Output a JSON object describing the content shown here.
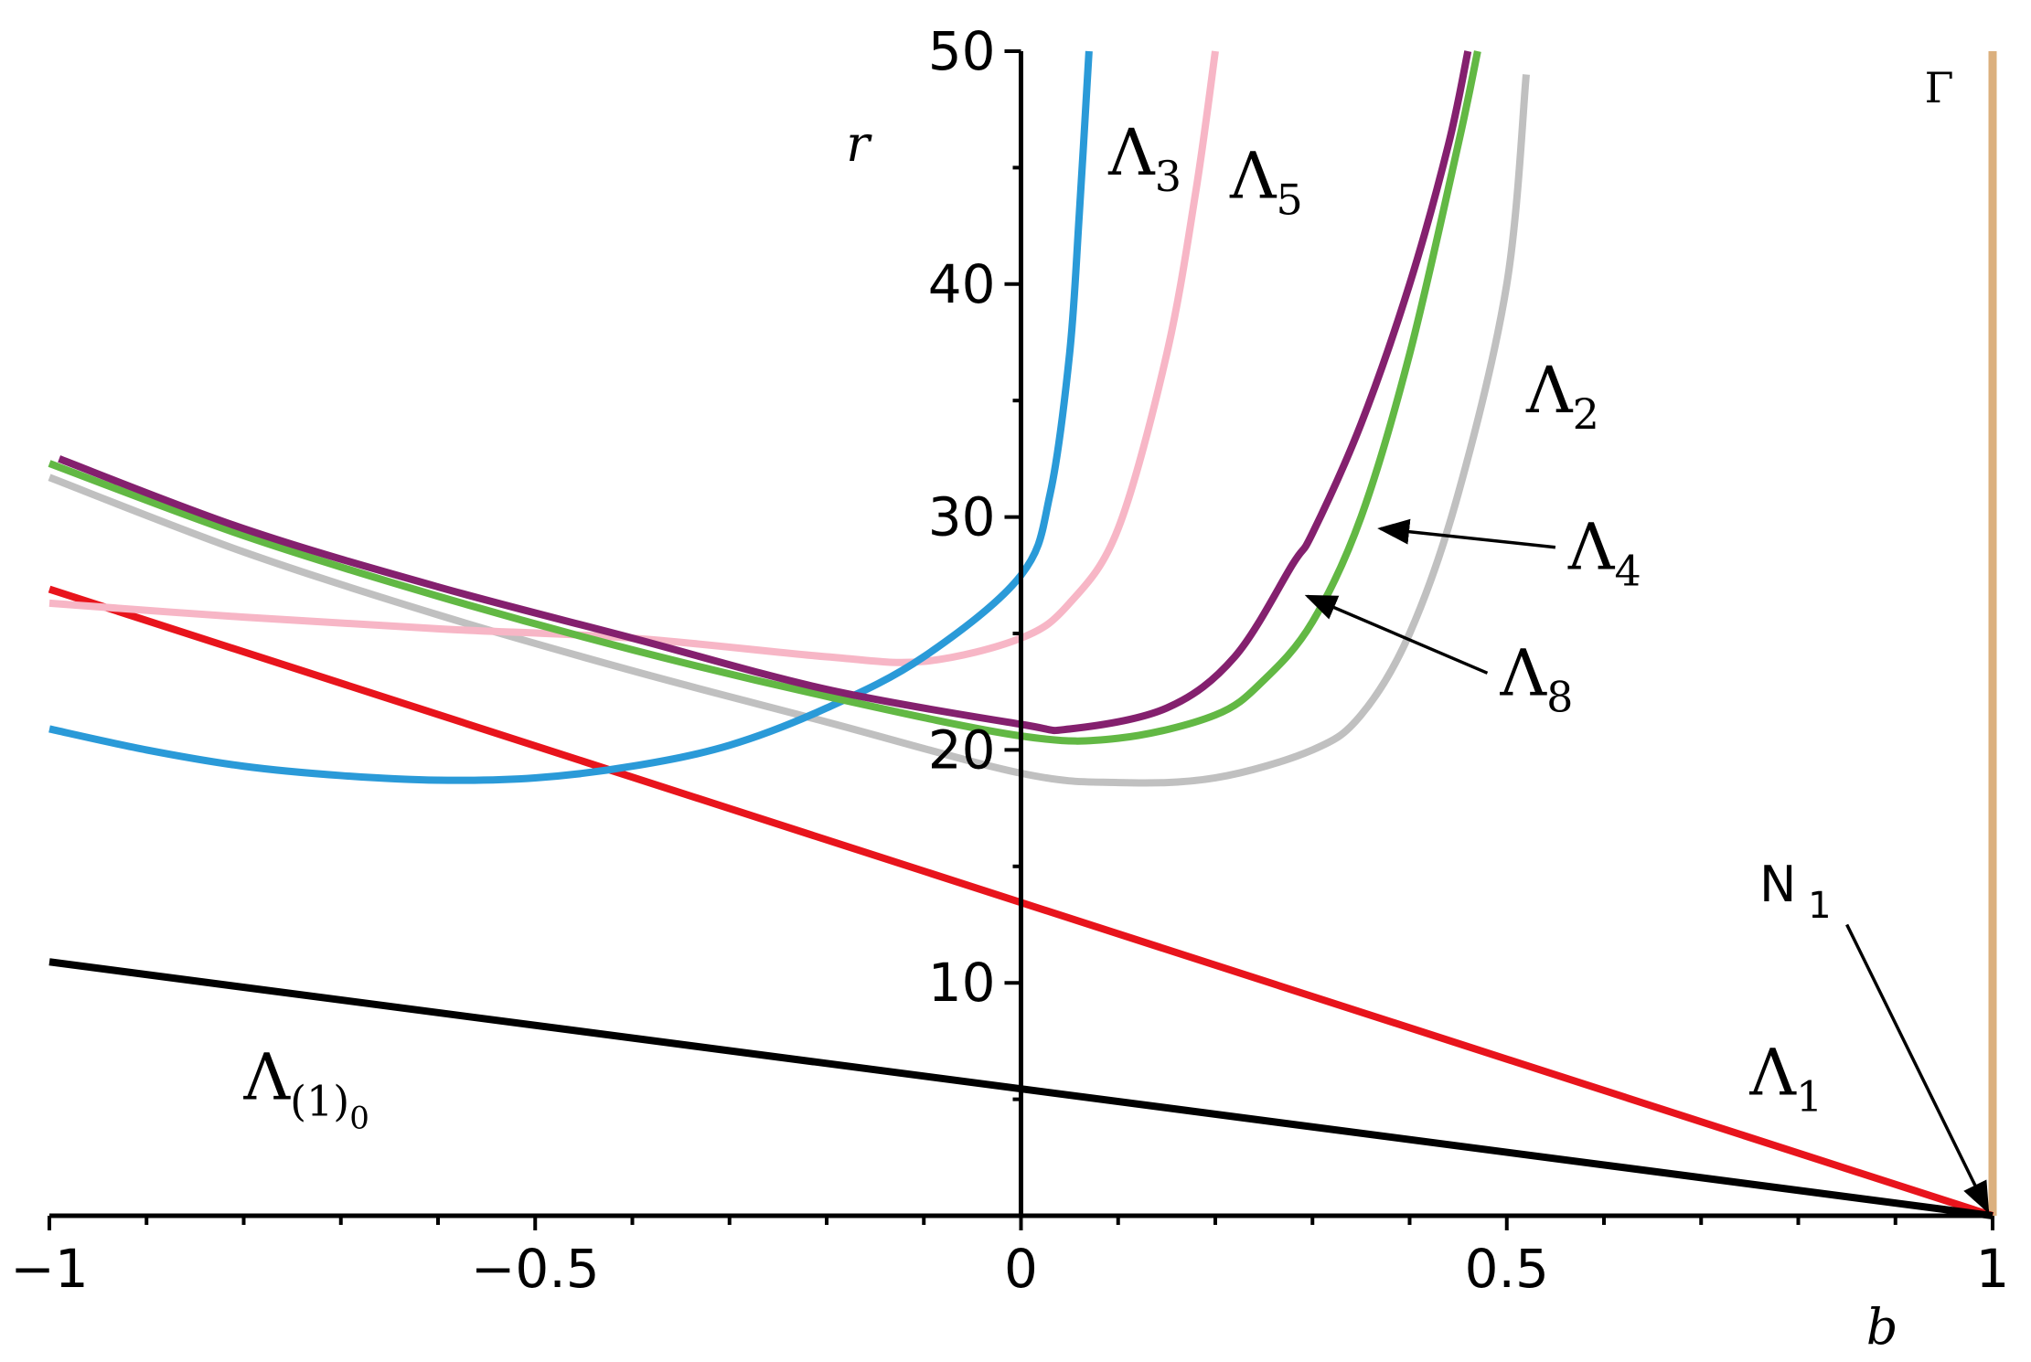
{
  "chart_data": {
    "type": "line",
    "title": "",
    "xlabel": "b",
    "ylabel": "r",
    "xlim": [
      -1,
      1
    ],
    "ylim": [
      0,
      50
    ],
    "x_ticks": [
      -1,
      -0.5,
      0,
      0.5,
      1
    ],
    "x_tick_labels": [
      "−1",
      "−0.5",
      "0",
      "0.5",
      "1"
    ],
    "y_ticks": [
      10,
      20,
      30,
      40,
      50
    ],
    "y_tick_labels": [
      "10",
      "20",
      "30",
      "40",
      "50"
    ],
    "grid": false,
    "legend": "none",
    "series": [
      {
        "name": "Λ(1)0",
        "label": "Λ",
        "sub": "(1)",
        "subsub": "0",
        "color": "#000000",
        "x": [
          -1,
          1
        ],
        "y": [
          10.9,
          0
        ],
        "label_pos": {
          "x": -0.8,
          "y": 5.0
        }
      },
      {
        "name": "Λ1",
        "label": "Λ",
        "sub": "1",
        "color": "#e8141c",
        "x": [
          -1,
          1
        ],
        "y": [
          26.9,
          0
        ],
        "label_pos": {
          "x": 0.75,
          "y": 5.2
        }
      },
      {
        "name": "Λ2",
        "label": "Λ",
        "sub": "2",
        "color": "#c0c0c0",
        "x": [
          -1,
          -0.8,
          -0.6,
          -0.4,
          -0.2,
          0,
          0.1,
          0.2,
          0.3,
          0.35,
          0.4,
          0.45,
          0.5,
          0.52
        ],
        "y": [
          31.7,
          28.5,
          25.8,
          23.4,
          21.2,
          19.0,
          18.6,
          18.8,
          20.0,
          21.5,
          25.0,
          31.0,
          40.0,
          49.0
        ],
        "label_pos": {
          "x": 0.52,
          "y": 34.5
        }
      },
      {
        "name": "Λ3",
        "label": "Λ",
        "sub": "3",
        "color": "#2a9ad8",
        "x": [
          -1,
          -0.9,
          -0.8,
          -0.7,
          -0.6,
          -0.5,
          -0.4,
          -0.3,
          -0.2,
          -0.1,
          0,
          0.03,
          0.05,
          0.06,
          0.07
        ],
        "y": [
          20.9,
          20.0,
          19.3,
          18.9,
          18.7,
          18.8,
          19.3,
          20.2,
          21.8,
          24.0,
          27.5,
          31.0,
          37.0,
          43.0,
          50.0
        ],
        "label_pos": {
          "x": 0.09,
          "y": 44.7
        }
      },
      {
        "name": "Λ4",
        "label": "Λ",
        "sub": "4",
        "color": "#62b844",
        "x": [
          -1,
          -0.8,
          -0.6,
          -0.4,
          -0.2,
          0,
          0.1,
          0.2,
          0.25,
          0.3,
          0.35,
          0.4,
          0.45,
          0.47
        ],
        "y": [
          32.3,
          29.2,
          26.6,
          24.3,
          22.3,
          20.6,
          20.5,
          21.5,
          23.0,
          25.5,
          30.0,
          37.0,
          46.0,
          50.0
        ],
        "label_pos": {
          "x": 0.57,
          "y": 28.2
        }
      },
      {
        "name": "Λ5",
        "label": "Λ",
        "sub": "5",
        "color": "#f7b6c6",
        "x": [
          -1,
          -0.8,
          -0.6,
          -0.4,
          -0.2,
          -0.1,
          0,
          0.05,
          0.1,
          0.15,
          0.18,
          0.2
        ],
        "y": [
          26.3,
          25.7,
          25.2,
          24.8,
          24.0,
          23.8,
          24.8,
          26.3,
          29.5,
          37.0,
          44.0,
          50.0
        ],
        "label_pos": {
          "x": 0.215,
          "y": 43.7
        }
      },
      {
        "name": "Λ8",
        "label": "Λ",
        "sub": "8",
        "color": "#84206e",
        "x": [
          -0.99,
          -0.8,
          -0.6,
          -0.4,
          -0.2,
          0,
          0.05,
          0.15,
          0.22,
          0.28,
          0.3,
          0.35,
          0.4,
          0.44,
          0.46
        ],
        "y": [
          32.5,
          29.5,
          27.0,
          24.8,
          22.6,
          21.1,
          20.9,
          21.8,
          24.0,
          28.0,
          29.3,
          34.0,
          40.0,
          46.0,
          50.0
        ],
        "label_pos": {
          "x": 0.485,
          "y": 22.8
        }
      }
    ],
    "vertical_lines": [
      {
        "name": "Γ",
        "x": 1.0,
        "color": "#dbb07e",
        "label_pos": {
          "x": 0.93,
          "y": 47.8
        }
      }
    ],
    "annotations": [
      {
        "label": "Λ",
        "sub": "4",
        "from": {
          "x": 0.55,
          "y": 28.7
        },
        "to": {
          "x": 0.37,
          "y": 29.5
        }
      },
      {
        "label": "Λ",
        "sub": "8",
        "from": {
          "x": 0.48,
          "y": 23.3
        },
        "to": {
          "x": 0.295,
          "y": 26.6
        }
      },
      {
        "label": "N",
        "sub": "1",
        "from": {
          "x": 0.85,
          "y": 12.5
        },
        "to": {
          "x": 0.995,
          "y": 0.2
        },
        "label_pos": {
          "x": 0.76,
          "y": 13.5
        }
      }
    ]
  }
}
